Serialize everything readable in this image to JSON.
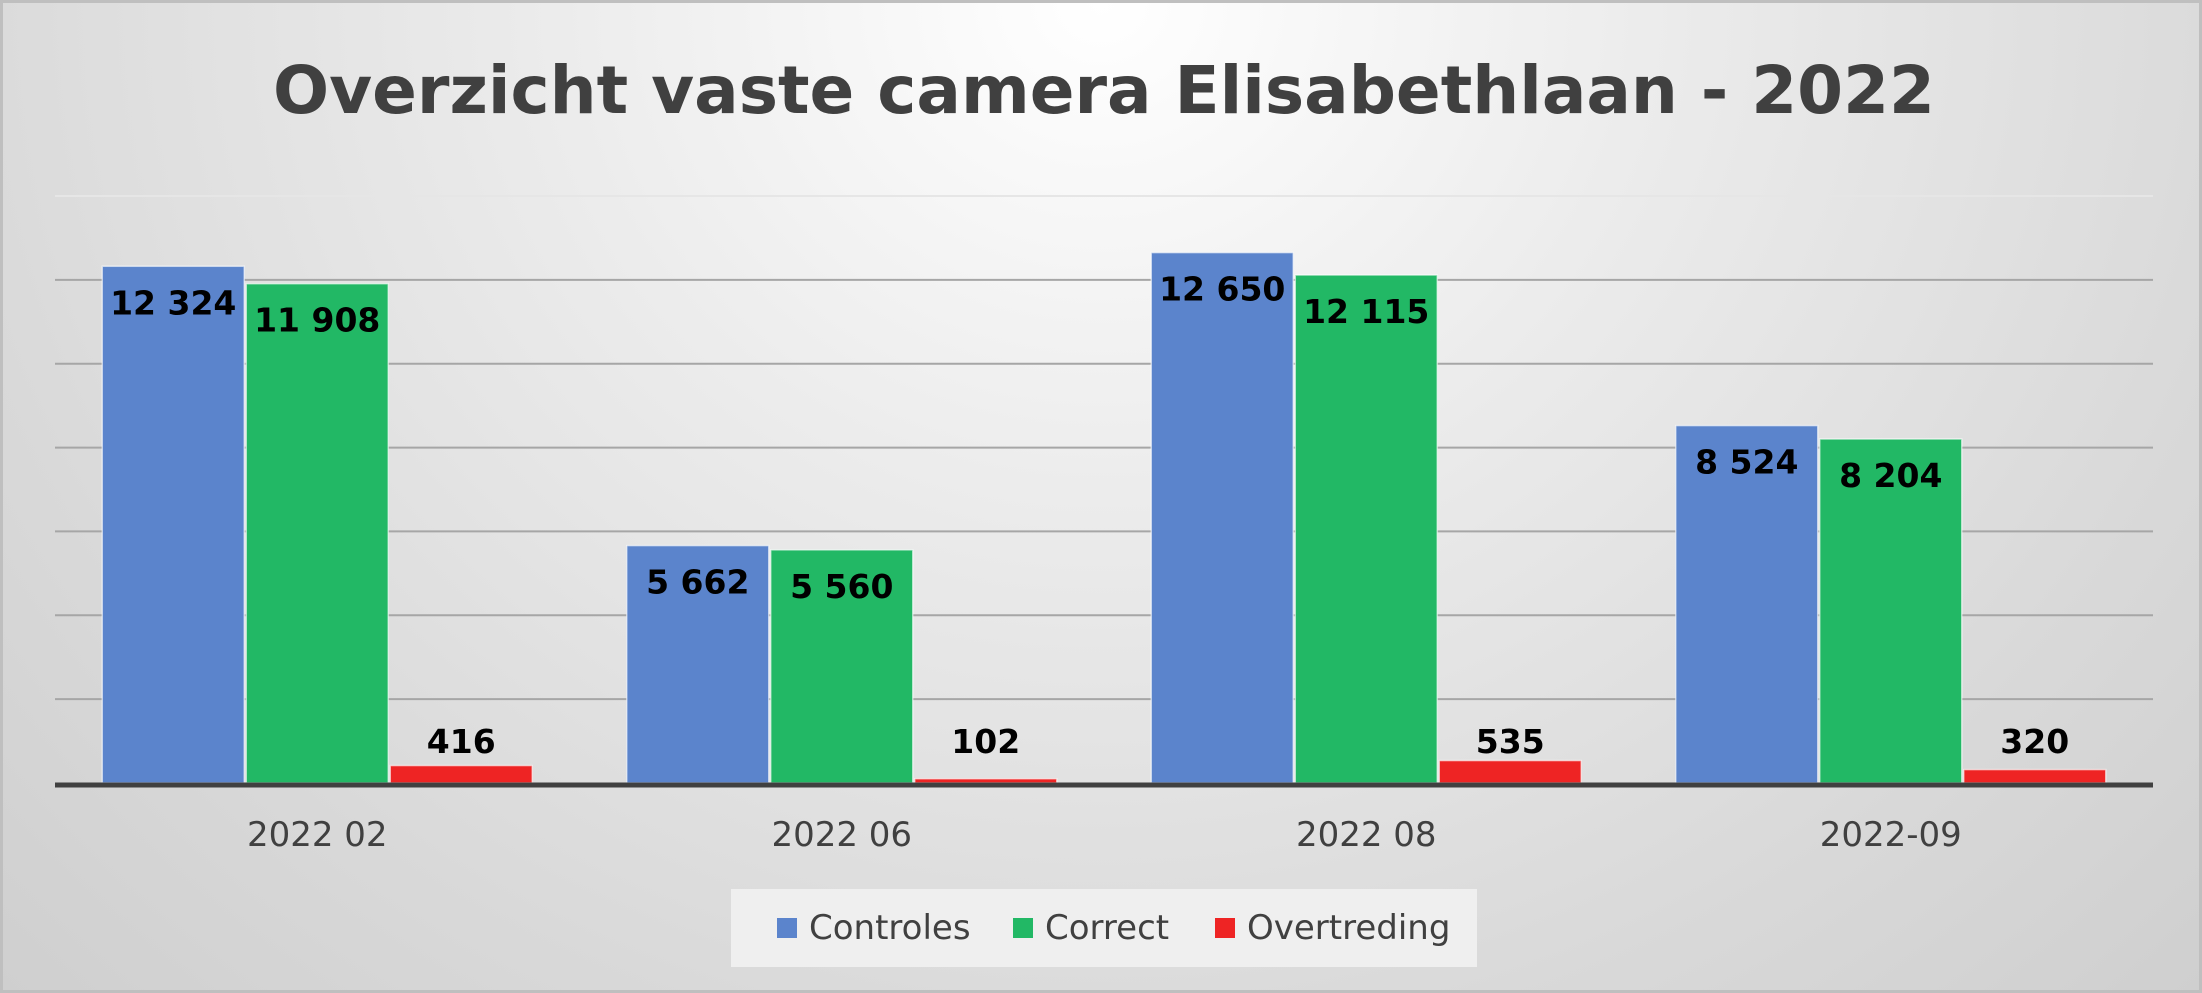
{
  "chart_data": {
    "type": "bar",
    "title": "Overzicht vaste camera Elisabethlaan - 2022",
    "categories": [
      "2022 02",
      "2022 06",
      "2022 08",
      "2022-09"
    ],
    "series": [
      {
        "name": "Controles",
        "color": "#5b84cc",
        "values": [
          12324,
          5662,
          12650,
          8524
        ],
        "labels": [
          "12 324",
          "5 662",
          "12 650",
          "8 524"
        ]
      },
      {
        "name": "Correct",
        "color": "#22b865",
        "values": [
          11908,
          5560,
          12115,
          8204
        ],
        "labels": [
          "11 908",
          "5 560",
          "12 115",
          "8 204"
        ]
      },
      {
        "name": "Overtreding",
        "color": "#ee2424",
        "values": [
          416,
          102,
          535,
          320
        ],
        "labels": [
          "416",
          "102",
          "535",
          "320"
        ]
      }
    ],
    "ylim": [
      0,
      14000
    ],
    "grid": true,
    "legend": "bottom"
  }
}
